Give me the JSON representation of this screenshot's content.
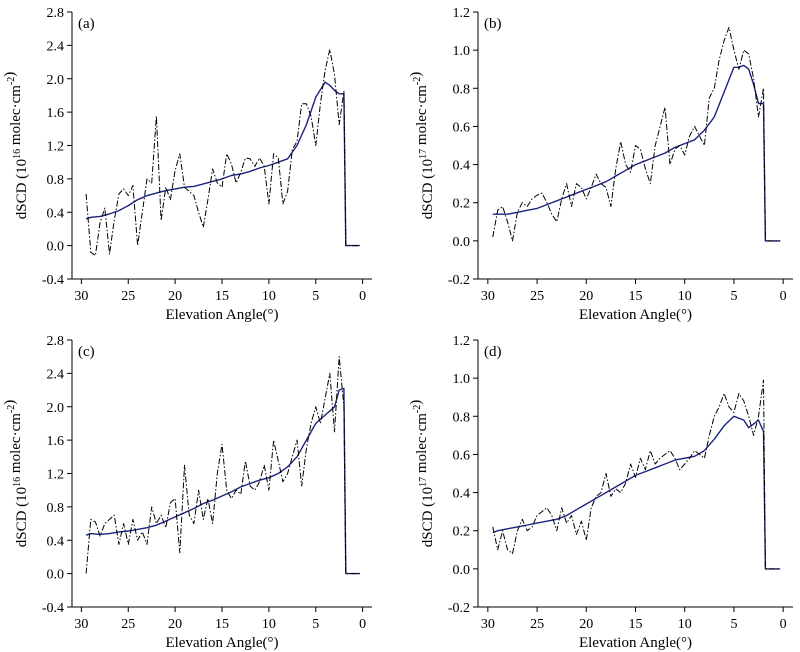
{
  "chart_data": [
    {
      "type": "line",
      "panel_label": "(a)",
      "xlabel": "Elevation Angle(°)",
      "ylabel_prefix": "dSCD (10",
      "ylabel_exp": "16",
      "ylabel_suffix": " molec·cm",
      "ylabel_unit_exp": "-2",
      "ylabel_close": ")",
      "xlim": [
        31,
        -1
      ],
      "ylim": [
        -0.4,
        2.8
      ],
      "xticks": [
        30,
        25,
        20,
        15,
        10,
        5,
        0
      ],
      "yticks": [
        -0.4,
        0.0,
        0.4,
        0.8,
        1.2,
        1.6,
        2.0,
        2.4,
        2.8
      ],
      "ytick_labels": [
        "-0.4",
        "0.0",
        "0.4",
        "0.8",
        "1.2",
        "1.6",
        "2.0",
        "2.4",
        "2.8"
      ],
      "grid": false,
      "series": [
        {
          "style": "solid",
          "color": "#1a237e",
          "x": [
            29.5,
            29,
            28,
            27,
            26,
            25,
            24,
            23,
            22,
            21,
            20,
            19,
            18,
            17,
            16,
            15,
            14,
            13,
            12,
            11,
            10,
            9,
            8,
            7,
            6,
            5,
            4,
            3.5,
            3,
            2.5,
            2,
            1.8,
            1.5,
            1.0,
            0.3
          ],
          "y": [
            0.32,
            0.34,
            0.35,
            0.38,
            0.42,
            0.48,
            0.55,
            0.6,
            0.63,
            0.66,
            0.68,
            0.7,
            0.71,
            0.74,
            0.77,
            0.8,
            0.84,
            0.86,
            0.89,
            0.93,
            0.96,
            1.0,
            1.04,
            1.2,
            1.45,
            1.78,
            1.96,
            1.92,
            1.86,
            1.82,
            1.82,
            0.0,
            0.0,
            0.0,
            0.0
          ]
        },
        {
          "style": "dashdot",
          "color": "#000000",
          "x": [
            29.5,
            29,
            28.5,
            28,
            27.5,
            27,
            26.5,
            26,
            25.5,
            25,
            24.5,
            24,
            23.5,
            23,
            22.5,
            22,
            21.5,
            21,
            20.5,
            20,
            19.5,
            19,
            18.5,
            18,
            17.5,
            17,
            16.5,
            16,
            15.5,
            15,
            14.5,
            14,
            13.5,
            13,
            12.5,
            12,
            11.5,
            11,
            10.5,
            10,
            9.5,
            9,
            8.5,
            8,
            7.5,
            7,
            6.5,
            6,
            5.5,
            5,
            4.5,
            4,
            3.5,
            3,
            2.5,
            2,
            1.8,
            1.5,
            1.0,
            0.3
          ],
          "y": [
            0.62,
            -0.08,
            -0.12,
            0.28,
            0.45,
            -0.1,
            0.3,
            0.62,
            0.68,
            0.6,
            0.72,
            0.0,
            0.4,
            0.8,
            0.75,
            1.55,
            0.3,
            0.7,
            0.55,
            0.9,
            1.1,
            0.7,
            0.65,
            0.6,
            0.4,
            0.22,
            0.55,
            0.92,
            0.75,
            0.7,
            1.1,
            0.98,
            0.75,
            0.88,
            1.05,
            1.04,
            0.95,
            1.05,
            0.95,
            0.5,
            1.1,
            1.05,
            0.5,
            0.65,
            1.15,
            1.25,
            1.7,
            1.7,
            1.55,
            1.2,
            1.7,
            2.1,
            2.35,
            2.05,
            1.45,
            1.85,
            0.0,
            0.0,
            0.0,
            0.0
          ]
        }
      ]
    },
    {
      "type": "line",
      "panel_label": "(b)",
      "xlabel": "Elevation Angle(°)",
      "ylabel_prefix": "dSCD (10",
      "ylabel_exp": "17",
      "ylabel_suffix": " molec·cm",
      "ylabel_unit_exp": "-2",
      "ylabel_close": ")",
      "xlim": [
        31,
        -1
      ],
      "ylim": [
        -0.2,
        1.2
      ],
      "xticks": [
        30,
        25,
        20,
        15,
        10,
        5,
        0
      ],
      "yticks": [
        -0.2,
        0.0,
        0.2,
        0.4,
        0.6,
        0.8,
        1.0,
        1.2
      ],
      "ytick_labels": [
        "-0.2",
        "0.0",
        "0.2",
        "0.4",
        "0.6",
        "0.8",
        "1.0",
        "1.2"
      ],
      "grid": false,
      "series": [
        {
          "style": "solid",
          "color": "#1a237e",
          "x": [
            29.5,
            29,
            28,
            27,
            26,
            25,
            24,
            23,
            22,
            21,
            20,
            19,
            18,
            17,
            16,
            15,
            14,
            13,
            12,
            11,
            10,
            9,
            8,
            7,
            6,
            5,
            4.5,
            4,
            3.5,
            3,
            2.5,
            2,
            1.8,
            1.5,
            1.0,
            0.3
          ],
          "y": [
            0.14,
            0.14,
            0.14,
            0.15,
            0.16,
            0.17,
            0.19,
            0.21,
            0.23,
            0.25,
            0.27,
            0.29,
            0.31,
            0.34,
            0.37,
            0.4,
            0.42,
            0.44,
            0.46,
            0.49,
            0.51,
            0.53,
            0.58,
            0.65,
            0.78,
            0.91,
            0.91,
            0.92,
            0.9,
            0.82,
            0.72,
            0.72,
            0.0,
            0.0,
            0.0,
            0.0
          ]
        },
        {
          "style": "dashdot",
          "color": "#000000",
          "x": [
            29.5,
            29,
            28.5,
            28,
            27.5,
            27,
            26.5,
            26,
            25.5,
            25,
            24.5,
            24,
            23.5,
            23,
            22.5,
            22,
            21.5,
            21,
            20.5,
            20,
            19.5,
            19,
            18.5,
            18,
            17.5,
            17,
            16.5,
            16,
            15.5,
            15,
            14.5,
            14,
            13.5,
            13,
            12.5,
            12,
            11.5,
            11,
            10.5,
            10,
            9.5,
            9,
            8.5,
            8,
            7.5,
            7,
            6.5,
            6,
            5.5,
            5,
            4.5,
            4,
            3.5,
            3,
            2.5,
            2,
            1.8,
            1.5,
            1.0,
            0.3
          ],
          "y": [
            0.02,
            0.16,
            0.18,
            0.1,
            0.0,
            0.15,
            0.2,
            0.18,
            0.22,
            0.24,
            0.25,
            0.2,
            0.14,
            0.1,
            0.22,
            0.3,
            0.18,
            0.3,
            0.28,
            0.22,
            0.28,
            0.35,
            0.3,
            0.28,
            0.18,
            0.38,
            0.52,
            0.4,
            0.36,
            0.5,
            0.48,
            0.38,
            0.3,
            0.5,
            0.6,
            0.7,
            0.4,
            0.48,
            0.5,
            0.45,
            0.55,
            0.6,
            0.55,
            0.5,
            0.75,
            0.8,
            0.95,
            1.05,
            1.12,
            1.0,
            0.9,
            1.0,
            0.98,
            0.85,
            0.65,
            0.8,
            0.0,
            0.0,
            0.0,
            0.0
          ]
        }
      ]
    },
    {
      "type": "line",
      "panel_label": "(c)",
      "xlabel": "Elevation Angle(°)",
      "ylabel_prefix": "dSCD (10",
      "ylabel_exp": "16",
      "ylabel_suffix": " molec·cm",
      "ylabel_unit_exp": "-2",
      "ylabel_close": ")",
      "xlim": [
        31,
        -1
      ],
      "ylim": [
        -0.4,
        2.8
      ],
      "xticks": [
        30,
        25,
        20,
        15,
        10,
        5,
        0
      ],
      "yticks": [
        -0.4,
        0.0,
        0.4,
        0.8,
        1.2,
        1.6,
        2.0,
        2.4,
        2.8
      ],
      "ytick_labels": [
        "-0.4",
        "0.0",
        "0.4",
        "0.8",
        "1.2",
        "1.6",
        "2.0",
        "2.4",
        "2.8"
      ],
      "grid": false,
      "series": [
        {
          "style": "solid",
          "color": "#1a237e",
          "x": [
            29.5,
            29,
            28,
            27,
            26,
            25,
            24,
            23,
            22,
            21,
            20,
            19,
            18,
            17,
            16,
            15,
            14,
            13,
            12,
            11,
            10,
            9,
            8,
            7,
            6,
            5,
            4,
            3,
            2.5,
            2,
            1.8,
            1.5,
            1.0,
            0.3
          ],
          "y": [
            0.46,
            0.48,
            0.47,
            0.48,
            0.5,
            0.51,
            0.53,
            0.55,
            0.58,
            0.63,
            0.68,
            0.73,
            0.78,
            0.84,
            0.88,
            0.93,
            0.98,
            1.04,
            1.08,
            1.12,
            1.15,
            1.2,
            1.28,
            1.4,
            1.6,
            1.8,
            1.9,
            2.0,
            2.2,
            2.22,
            0.0,
            0.0,
            0.0,
            0.0
          ]
        },
        {
          "style": "dashdot",
          "color": "#000000",
          "x": [
            29.5,
            29,
            28.5,
            28,
            27.5,
            27,
            26.5,
            26,
            25.5,
            25,
            24.5,
            24,
            23.5,
            23,
            22.5,
            22,
            21.5,
            21,
            20.5,
            20,
            19.5,
            19,
            18.5,
            18,
            17.5,
            17,
            16.5,
            16,
            15.5,
            15,
            14.5,
            14,
            13.5,
            13,
            12.5,
            12,
            11.5,
            11,
            10.5,
            10,
            9.5,
            9,
            8.5,
            8,
            7.5,
            7,
            6.5,
            6,
            5.5,
            5,
            4.5,
            4,
            3.5,
            3,
            2.5,
            2,
            1.8,
            1.5,
            1.0,
            0.3
          ],
          "y": [
            0.0,
            0.65,
            0.62,
            0.45,
            0.6,
            0.65,
            0.7,
            0.35,
            0.6,
            0.35,
            0.65,
            0.4,
            0.5,
            0.35,
            0.8,
            0.6,
            0.7,
            0.55,
            0.85,
            0.9,
            0.25,
            1.3,
            0.7,
            0.6,
            1.0,
            0.65,
            0.9,
            0.6,
            1.2,
            1.55,
            1.0,
            0.9,
            1.0,
            0.95,
            1.35,
            1.05,
            1.0,
            1.1,
            1.3,
            1.0,
            1.6,
            1.35,
            1.1,
            1.2,
            1.4,
            1.6,
            1.05,
            1.5,
            1.8,
            2.0,
            1.8,
            2.1,
            2.4,
            1.7,
            2.6,
            2.0,
            0.0,
            0.0,
            0.0,
            0.0
          ]
        }
      ]
    },
    {
      "type": "line",
      "panel_label": "(d)",
      "xlabel": "Elevation Angle(°)",
      "ylabel_prefix": "dSCD (10",
      "ylabel_exp": "17",
      "ylabel_suffix": " molec·cm",
      "ylabel_unit_exp": "-2",
      "ylabel_close": ")",
      "xlim": [
        31,
        -1
      ],
      "ylim": [
        -0.2,
        1.2
      ],
      "xticks": [
        30,
        25,
        20,
        15,
        10,
        5,
        0
      ],
      "yticks": [
        -0.2,
        0.0,
        0.2,
        0.4,
        0.6,
        0.8,
        1.0,
        1.2
      ],
      "ytick_labels": [
        "-0.2",
        "0.0",
        "0.2",
        "0.4",
        "0.6",
        "0.8",
        "1.0",
        "1.2"
      ],
      "grid": false,
      "series": [
        {
          "style": "solid",
          "color": "#1a237e",
          "x": [
            29.5,
            29,
            28,
            27,
            26,
            25,
            24,
            23,
            22,
            21,
            20,
            19,
            18,
            17,
            16,
            15,
            14,
            13,
            12,
            11,
            10,
            9,
            8,
            7,
            6,
            5,
            4,
            3.5,
            3,
            2.5,
            2,
            1.8,
            1.5,
            1.0,
            0.3
          ],
          "y": [
            0.19,
            0.2,
            0.21,
            0.22,
            0.23,
            0.24,
            0.25,
            0.26,
            0.28,
            0.31,
            0.34,
            0.37,
            0.4,
            0.43,
            0.46,
            0.49,
            0.51,
            0.53,
            0.55,
            0.57,
            0.58,
            0.59,
            0.62,
            0.68,
            0.75,
            0.8,
            0.78,
            0.74,
            0.76,
            0.78,
            0.72,
            0.0,
            0.0,
            0.0,
            0.0
          ]
        },
        {
          "style": "dashdot",
          "color": "#000000",
          "x": [
            29.5,
            29,
            28.5,
            28,
            27.5,
            27,
            26.5,
            26,
            25.5,
            25,
            24.5,
            24,
            23.5,
            23,
            22.5,
            22,
            21.5,
            21,
            20.5,
            20,
            19.5,
            19,
            18.5,
            18,
            17.5,
            17,
            16.5,
            16,
            15.5,
            15,
            14.5,
            14,
            13.5,
            13,
            12.5,
            12,
            11.5,
            11,
            10.5,
            10,
            9.5,
            9,
            8.5,
            8,
            7.5,
            7,
            6.5,
            6,
            5.5,
            5,
            4.5,
            4,
            3.5,
            3,
            2.5,
            2,
            1.8,
            1.5,
            1.0,
            0.3
          ],
          "y": [
            0.22,
            0.1,
            0.2,
            0.1,
            0.08,
            0.2,
            0.26,
            0.2,
            0.22,
            0.28,
            0.3,
            0.32,
            0.28,
            0.2,
            0.32,
            0.24,
            0.28,
            0.18,
            0.25,
            0.15,
            0.32,
            0.38,
            0.4,
            0.5,
            0.38,
            0.42,
            0.4,
            0.45,
            0.55,
            0.48,
            0.58,
            0.52,
            0.62,
            0.55,
            0.58,
            0.6,
            0.62,
            0.58,
            0.52,
            0.55,
            0.58,
            0.62,
            0.6,
            0.58,
            0.7,
            0.8,
            0.85,
            0.92,
            0.85,
            0.82,
            0.92,
            0.88,
            0.8,
            0.7,
            0.8,
            0.99,
            0.0,
            0.0,
            0.0,
            0.0
          ]
        }
      ]
    }
  ]
}
